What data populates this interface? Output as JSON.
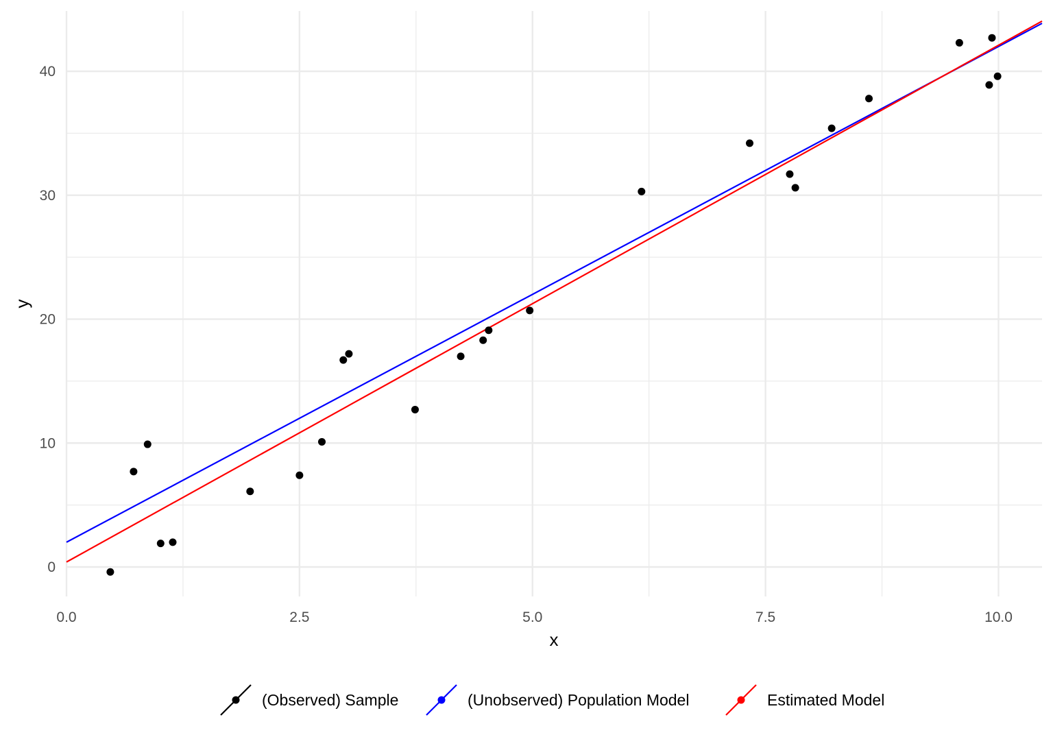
{
  "chart_data": {
    "type": "scatter",
    "title": "",
    "xlabel": "x",
    "ylabel": "y",
    "xlim": [
      0,
      10.45
    ],
    "ylim": [
      -2.5,
      44.8
    ],
    "x_ticks": [
      0.0,
      2.5,
      5.0,
      7.5,
      10.0
    ],
    "x_tick_labels": [
      "0.0",
      "2.5",
      "5.0",
      "7.5",
      "10.0"
    ],
    "y_ticks": [
      0,
      10,
      20,
      30,
      40
    ],
    "y_tick_labels": [
      "0",
      "10",
      "20",
      "30",
      "40"
    ],
    "x_minor_ticks": [
      1.25,
      3.75,
      6.25,
      8.75
    ],
    "y_minor_ticks": [
      5,
      15,
      25,
      35
    ],
    "grid": true,
    "legend_position": "bottom",
    "points": {
      "name": "(Observed) Sample",
      "color": "#000000",
      "x": [
        0.47,
        0.72,
        0.87,
        1.01,
        1.14,
        1.97,
        2.5,
        2.74,
        2.97,
        3.03,
        3.74,
        4.23,
        4.47,
        4.53,
        4.97,
        6.17,
        7.33,
        7.76,
        7.82,
        8.21,
        8.61,
        9.58,
        9.9,
        9.93,
        9.99
      ],
      "y": [
        -0.4,
        7.7,
        9.9,
        1.9,
        2.0,
        6.1,
        7.4,
        10.1,
        16.7,
        17.2,
        12.7,
        17.0,
        18.3,
        19.1,
        20.7,
        30.3,
        34.2,
        31.7,
        30.6,
        35.4,
        37.8,
        42.3,
        38.9,
        42.7,
        39.6
      ]
    },
    "lines": [
      {
        "name": "(Unobserved) Population Model",
        "color": "#0000ff",
        "intercept": 2.0,
        "slope": 4.0
      },
      {
        "name": "Estimated Model",
        "color": "#ff0000",
        "intercept": 0.4,
        "slope": 4.17
      }
    ],
    "legend": [
      {
        "label": "(Observed) Sample",
        "color": "#000000"
      },
      {
        "label": "(Unobserved) Population Model",
        "color": "#0000ff"
      },
      {
        "label": "Estimated Model",
        "color": "#ff0000"
      }
    ]
  }
}
